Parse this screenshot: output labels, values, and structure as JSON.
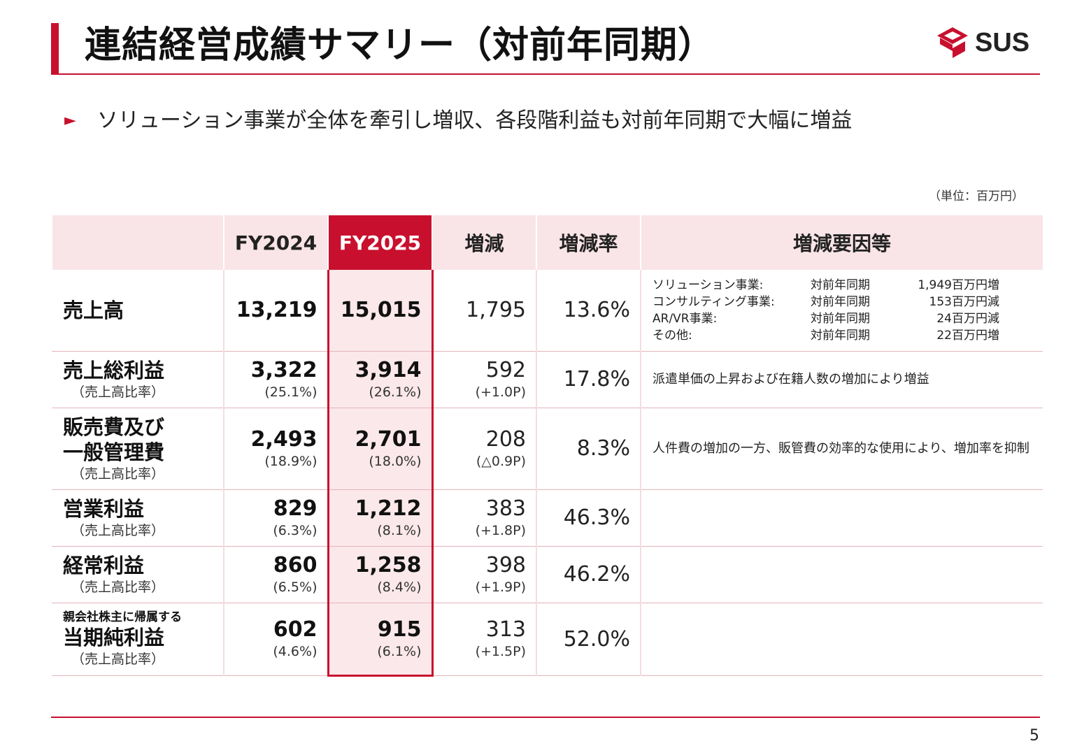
{
  "header": {
    "title": "連結経営成績サマリー（対前年同期）",
    "logo_text": "SUS"
  },
  "headline": {
    "marker": "►",
    "text": "ソリューション事業が全体を牽引し増収、各段階利益も対前年同期で大幅に増益"
  },
  "unit": "（単位：百万円）",
  "table": {
    "columns": [
      "",
      "FY2024",
      "FY2025",
      "増減",
      "増減率",
      "増減要因等"
    ],
    "rows": [
      {
        "label": "売上高",
        "fy2024": "13,219",
        "fy2025": "15,015",
        "diff": "1,795",
        "rate": "13.6%",
        "factors": [
          {
            "segment": "ソリューション事業:",
            "period": "対前年同期",
            "amount": "1,949百万円増"
          },
          {
            "segment": "コンサルティング事業:",
            "period": "対前年同期",
            "amount": "153百万円減"
          },
          {
            "segment": "AR/VR事業:",
            "period": "対前年同期",
            "amount": "24百万円減"
          },
          {
            "segment": "その他:",
            "period": "対前年同期",
            "amount": "22百万円増"
          }
        ]
      },
      {
        "label": "売上総利益",
        "sub": "（売上高比率）",
        "fy2024": "3,322",
        "fy2024_ratio": "(25.1%)",
        "fy2025": "3,914",
        "fy2025_ratio": "(26.1%)",
        "diff": "592",
        "diff_pt": "(+1.0P)",
        "rate": "17.8%",
        "factor": "派遣単価の上昇および在籍人数の増加により増益"
      },
      {
        "label_line1": "販売費及び",
        "label_line2": "一般管理費",
        "sub": "（売上高比率）",
        "fy2024": "2,493",
        "fy2024_ratio": "(18.9%)",
        "fy2025": "2,701",
        "fy2025_ratio": "(18.0%)",
        "diff": "208",
        "diff_pt": "(△0.9P)",
        "rate": "8.3%",
        "factor": "人件費の増加の一方、販管費の効率的な使用により、増加率を抑制"
      },
      {
        "label": "営業利益",
        "sub": "（売上高比率）",
        "fy2024": "829",
        "fy2024_ratio": "(6.3%)",
        "fy2025": "1,212",
        "fy2025_ratio": "(8.1%)",
        "diff": "383",
        "diff_pt": "(+1.8P)",
        "rate": "46.3%",
        "factor": ""
      },
      {
        "label": "経常利益",
        "sub": "（売上高比率）",
        "fy2024": "860",
        "fy2024_ratio": "(6.5%)",
        "fy2025": "1,258",
        "fy2025_ratio": "(8.4%)",
        "diff": "398",
        "diff_pt": "(+1.9P)",
        "rate": "46.2%",
        "factor": ""
      },
      {
        "label_pre": "親会社株主に帰属する",
        "label": "当期純利益",
        "sub": "（売上高比率）",
        "fy2024": "602",
        "fy2024_ratio": "(4.6%)",
        "fy2025": "915",
        "fy2025_ratio": "(6.1%)",
        "diff": "313",
        "diff_pt": "(+1.5P)",
        "rate": "52.0%",
        "factor": ""
      }
    ]
  },
  "page_number": "5",
  "colors": {
    "accent": "#c8102e",
    "header_bg": "#f9e4e7",
    "highlight_bg": "#fbe8ea"
  }
}
